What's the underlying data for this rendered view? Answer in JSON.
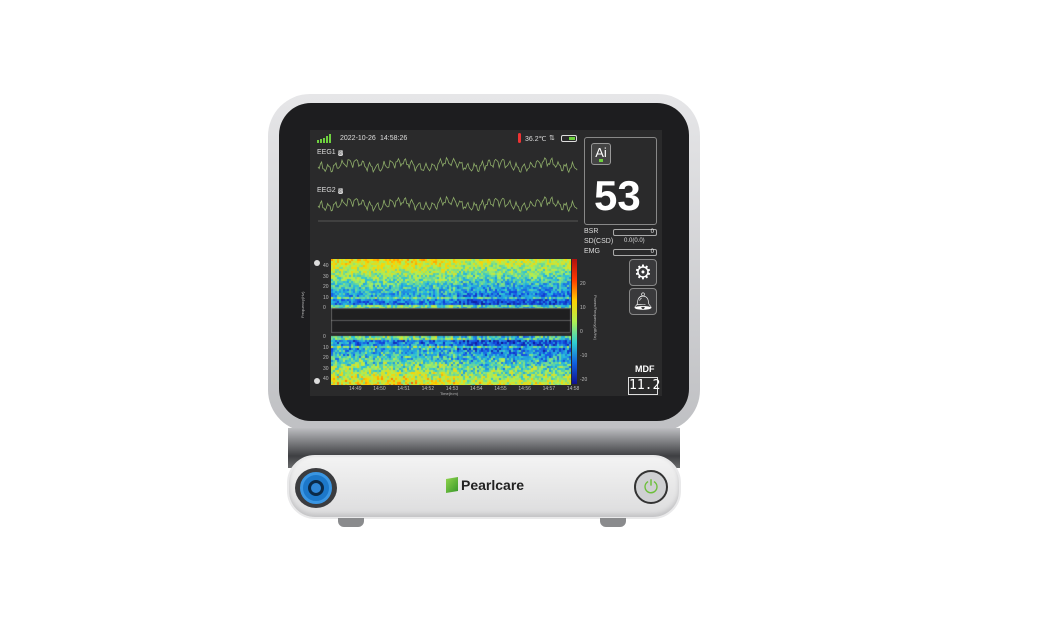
{
  "brand": "Pearlcare",
  "status": {
    "date": "2022-10-26",
    "time": "14:58:26",
    "temperature": "36.2℃",
    "signal_icon": "signal-bars-icon",
    "battery_icon": "battery-icon"
  },
  "eeg": [
    {
      "label": "EEG1",
      "badge": "◎"
    },
    {
      "label": "EEG2",
      "badge": "◎"
    }
  ],
  "index": {
    "icon_label": "Ai",
    "value": "53"
  },
  "params": [
    {
      "label": "BSR",
      "value": "0"
    },
    {
      "label": "SD(CSD)",
      "value": "0.0(0.0)"
    },
    {
      "label": "EMG",
      "value": "0"
    }
  ],
  "spectrogram": {
    "y_ticks_top": [
      "40",
      "30",
      "20",
      "10",
      "0"
    ],
    "y_ticks_bottom": [
      "0",
      "10",
      "20",
      "30",
      "40"
    ],
    "ylabel": "Frequency(Hz)",
    "xlabel": "Time(h:m)",
    "x_ticks": [
      "14:49",
      "14:50",
      "14:51",
      "14:52",
      "14:53",
      "14:54",
      "14:55",
      "14:56",
      "14:57",
      "14:58"
    ],
    "colorbar_label": "Power/Frequency(dB/Hz)",
    "colorbar_ticks": [
      "20",
      "10",
      "0",
      "-10",
      "-20"
    ]
  },
  "mdf": {
    "label": "MDF",
    "value": "11.2"
  },
  "colors": {
    "waveform": "#8fae6a",
    "accent_green": "#6ed13f",
    "port_blue": "#1d78c9"
  }
}
